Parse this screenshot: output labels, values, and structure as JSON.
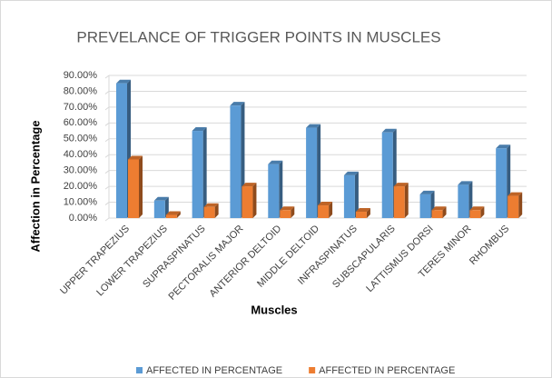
{
  "chart_data": {
    "type": "bar3d",
    "title": "PREVELANCE OF TRIGGER POINTS IN MUSCLES",
    "x_label": "Muscles",
    "y_label": "Affection in Percentage",
    "categories": [
      "UPPER TRAPEZIUS",
      "LOWER TRAPEZIUS",
      "SUPRASPINATUS",
      "PECTORALIS MAJOR",
      "ANTERIOR DELTOID",
      "MIDDLE DELTOID",
      "INFRASPINATUS",
      "SUBSCAPULARIS",
      "LATTISMUS DORSI",
      "TERES MINOR",
      "RHOMBUS"
    ],
    "series": [
      {
        "name": "AFFECTED IN PERCENTAGE",
        "color": "#5b9bd5",
        "values": [
          85,
          11,
          55,
          71,
          34,
          57,
          27,
          54,
          15,
          21,
          44
        ]
      },
      {
        "name": "AFFECTED IN PERCENTAGE",
        "color": "#ed7d31",
        "values": [
          37,
          2,
          7,
          20,
          5,
          8,
          4,
          20,
          5,
          5,
          14
        ]
      }
    ],
    "ylim": [
      0,
      90
    ],
    "yticks": [
      {
        "value": 0,
        "label": "0.00%"
      },
      {
        "value": 10,
        "label": "10.00%"
      },
      {
        "value": 20,
        "label": "20.00%"
      },
      {
        "value": 30,
        "label": "30.00%"
      },
      {
        "value": 40,
        "label": "40.00%"
      },
      {
        "value": 50,
        "label": "50.00%"
      },
      {
        "value": 60,
        "label": "60.00%"
      },
      {
        "value": 70,
        "label": "70.00%"
      },
      {
        "value": 80,
        "label": "80.00%"
      },
      {
        "value": 90,
        "label": "90.00%"
      }
    ],
    "grid": true,
    "legend": "bottom"
  }
}
